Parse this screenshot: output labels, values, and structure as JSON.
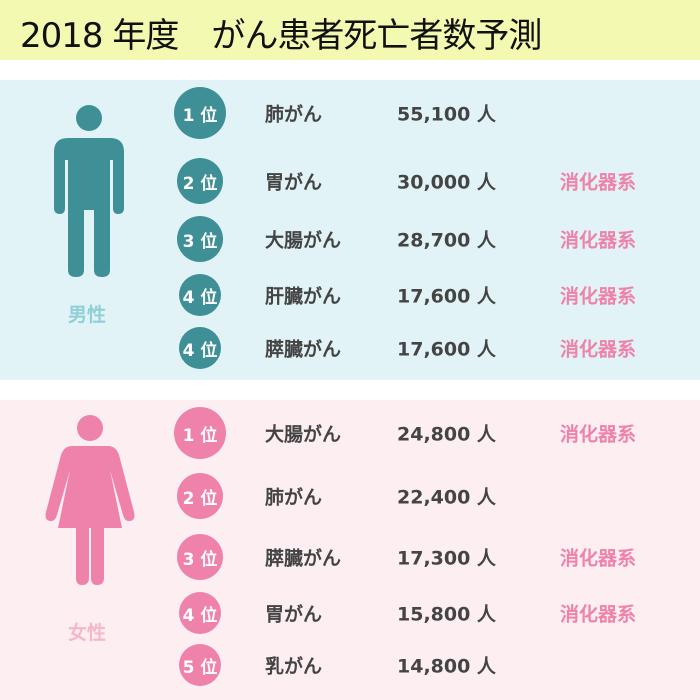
{
  "title": "2018 年度　がん患者死亡者数予測",
  "colors": {
    "male": "#3e8f96",
    "female": "#ef82aa",
    "male_label": "#8fd0d6",
    "female_label": "#f7b7cb",
    "category": "#ef82aa"
  },
  "male": {
    "label": "男性",
    "icon": "male-figure-icon",
    "rows": [
      {
        "rank": "1 位",
        "name": "肺がん",
        "count": "55,100 人",
        "category": ""
      },
      {
        "rank": "2 位",
        "name": "胃がん",
        "count": "30,000 人",
        "category": "消化器系"
      },
      {
        "rank": "3 位",
        "name": "大腸がん",
        "count": "28,700 人",
        "category": "消化器系"
      },
      {
        "rank": "4 位",
        "name": "肝臓がん",
        "count": "17,600 人",
        "category": "消化器系"
      },
      {
        "rank": "4 位",
        "name": "膵臓がん",
        "count": "17,600 人",
        "category": "消化器系"
      }
    ]
  },
  "female": {
    "label": "女性",
    "icon": "female-figure-icon",
    "rows": [
      {
        "rank": "1 位",
        "name": "大腸がん",
        "count": "24,800 人",
        "category": "消化器系"
      },
      {
        "rank": "2 位",
        "name": "肺がん",
        "count": "22,400 人",
        "category": ""
      },
      {
        "rank": "3 位",
        "name": "膵臓がん",
        "count": "17,300 人",
        "category": "消化器系"
      },
      {
        "rank": "4 位",
        "name": "胃がん",
        "count": "15,800 人",
        "category": "消化器系"
      },
      {
        "rank": "5 位",
        "name": "乳がん",
        "count": "14,800 人",
        "category": ""
      }
    ]
  }
}
